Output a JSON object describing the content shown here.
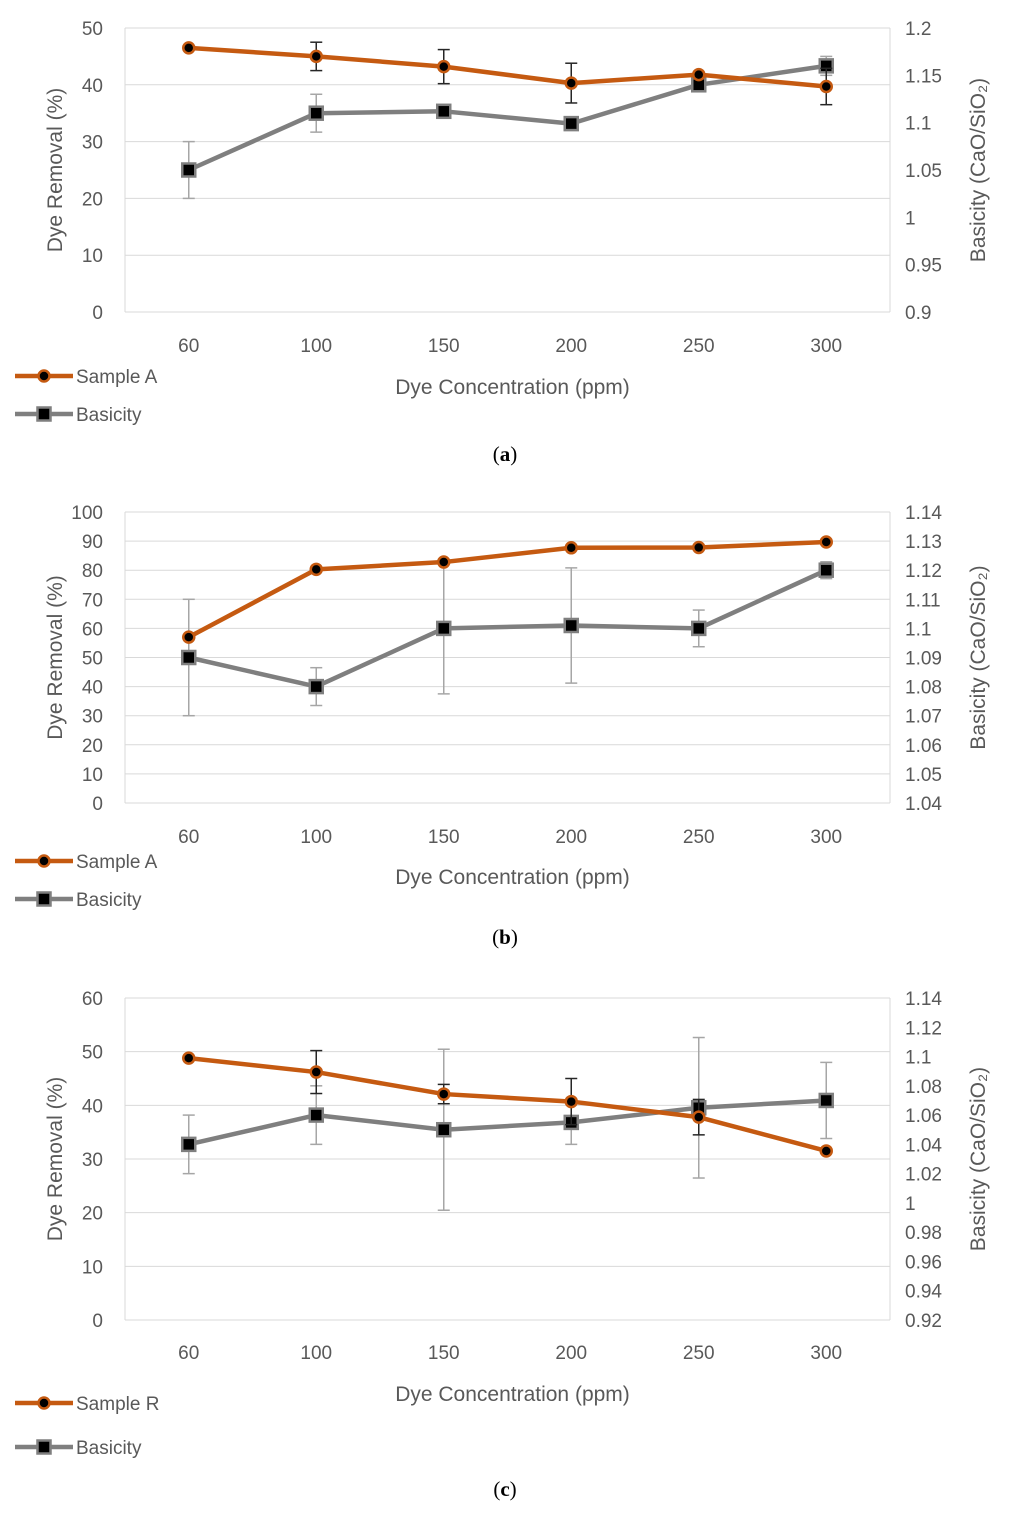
{
  "colors": {
    "sample": "#c55a11",
    "basicity": "#7f7f7f",
    "grid": "#d9d9d9",
    "axis_text": "#595959",
    "marker_fill": "#000000",
    "errbar_grey": "#a6a6a6",
    "errbar_dark": "#262626"
  },
  "chart_data": [
    {
      "type": "line",
      "caption": "a",
      "categories": [
        "60",
        "100",
        "150",
        "200",
        "250",
        "300"
      ],
      "xlabel": "Dye Concentration (ppm)",
      "ylabel": "Dye Removal (%)",
      "y2label": "Basicity (CaO/SiO₂)",
      "ylim": [
        0,
        50
      ],
      "yticks": [
        "0",
        "10",
        "20",
        "30",
        "40",
        "50"
      ],
      "y2lim": [
        0.9,
        1.2
      ],
      "y2ticks": [
        "0.9",
        "0.95",
        "1",
        "1.05",
        "1.1",
        "1.15",
        "1.2"
      ],
      "grid": true,
      "legend_position": "bottom-left",
      "series": [
        {
          "name": "Sample A",
          "axis": "left",
          "marker": "circle",
          "values": [
            46.5,
            45.0,
            43.2,
            40.3,
            41.8,
            39.7
          ],
          "errors": [
            0,
            2.5,
            3.0,
            3.5,
            0,
            3.2
          ],
          "error_color": "dark"
        },
        {
          "name": "Basicity",
          "axis": "right",
          "marker": "square",
          "values": [
            1.05,
            1.11,
            1.112,
            1.099,
            1.14,
            1.16
          ],
          "errors": [
            0.03,
            0.02,
            0,
            0,
            0,
            0.01
          ],
          "error_color": "grey"
        }
      ]
    },
    {
      "type": "line",
      "caption": "b",
      "categories": [
        "60",
        "100",
        "150",
        "200",
        "250",
        "300"
      ],
      "xlabel": "Dye Concentration (ppm)",
      "ylabel": "Dye Removal (%)",
      "y2label": "Basicity (CaO/SiO₂)",
      "ylim": [
        0,
        100
      ],
      "yticks": [
        "0",
        "10",
        "20",
        "30",
        "40",
        "50",
        "60",
        "70",
        "80",
        "90",
        "100"
      ],
      "y2lim": [
        1.04,
        1.14
      ],
      "y2ticks": [
        "1.04",
        "1.05",
        "1.06",
        "1.07",
        "1.08",
        "1.09",
        "1.1",
        "1.11",
        "1.12",
        "1.13",
        "1.14"
      ],
      "grid": true,
      "legend_position": "bottom-left",
      "series": [
        {
          "name": "Sample A",
          "axis": "left",
          "marker": "circle",
          "values": [
            57.0,
            80.3,
            82.8,
            87.7,
            87.8,
            89.7
          ],
          "errors": [
            0,
            0,
            0,
            0,
            0,
            0
          ],
          "error_color": "dark"
        },
        {
          "name": "Basicity",
          "axis": "right",
          "marker": "square",
          "values": [
            1.09,
            1.08,
            1.1,
            1.101,
            1.1,
            1.12
          ],
          "errors": [
            0.02,
            0.0065,
            0.0225,
            0.0198,
            0.0063,
            0.0029
          ],
          "error_color": "grey"
        }
      ]
    },
    {
      "type": "line",
      "caption": "c",
      "categories": [
        "60",
        "100",
        "150",
        "200",
        "250",
        "300"
      ],
      "xlabel": "Dye Concentration (ppm)",
      "ylabel": "Dye Removal (%)",
      "y2label": "Basicity (CaO/SiO₂)",
      "ylim": [
        0,
        60
      ],
      "yticks": [
        "0",
        "10",
        "20",
        "30",
        "40",
        "50",
        "60"
      ],
      "y2lim": [
        0.92,
        1.14
      ],
      "y2ticks": [
        "0.92",
        "0.94",
        "0.96",
        "0.98",
        "1",
        "1.02",
        "1.04",
        "1.06",
        "1.08",
        "1.1",
        "1.12",
        "1.14"
      ],
      "grid": true,
      "legend_position": "bottom-left",
      "series": [
        {
          "name": "Sample R",
          "axis": "left",
          "marker": "circle",
          "values": [
            48.8,
            46.2,
            42.1,
            40.7,
            37.8,
            31.5
          ],
          "errors": [
            0,
            4.0,
            1.8,
            4.3,
            3.3,
            0
          ],
          "error_color": "dark"
        },
        {
          "name": "Basicity",
          "axis": "right",
          "marker": "square",
          "values": [
            1.04,
            1.06,
            1.05,
            1.055,
            1.065,
            1.07
          ],
          "errors": [
            0.02,
            0.02,
            0.055,
            0.015,
            0.048,
            0.026
          ],
          "error_color": "grey"
        }
      ]
    }
  ]
}
